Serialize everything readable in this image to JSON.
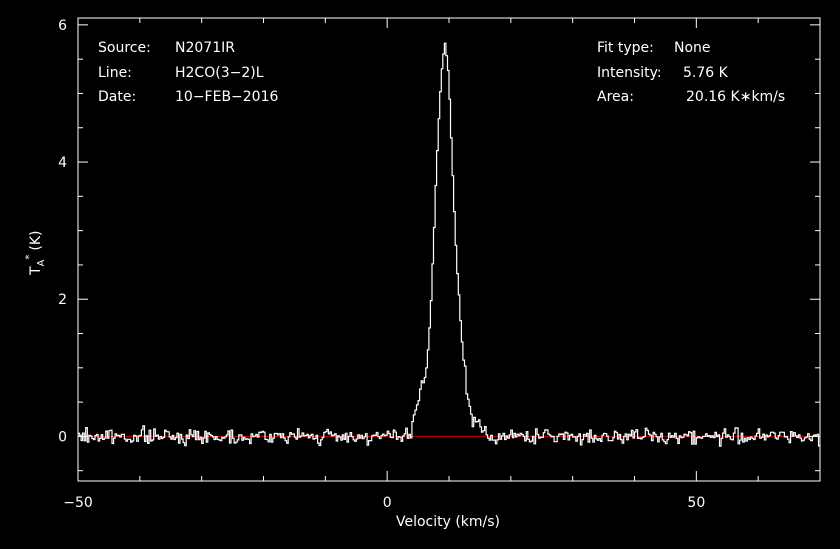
{
  "info": {
    "source_label": "Source:",
    "source_value": "N2071IR",
    "line_label": "Line:",
    "line_value": "H2CO(3−2)L",
    "date_label": "Date:",
    "date_value": "10−FEB−2016",
    "fit_label": "Fit type:",
    "fit_value": "None",
    "intensity_label": "Intensity:",
    "intensity_value": "5.76 K",
    "area_label": "Area:",
    "area_value": "20.16 K∗km/s"
  },
  "chart_data": {
    "type": "line",
    "xlabel": "Velocity (km/s)",
    "ylabel_main": "T",
    "ylabel_sub": "A",
    "ylabel_sup": "*",
    "ylabel_unit": "(K)",
    "xlim": [
      -50,
      70
    ],
    "ylim": [
      -0.65,
      6.1
    ],
    "x_ticks": [
      -50,
      0,
      50
    ],
    "x_tick_labels": [
      "−50",
      "0",
      "50"
    ],
    "y_ticks": [
      0,
      2,
      4,
      6
    ],
    "y_tick_labels": [
      "0",
      "2",
      "4",
      "6"
    ],
    "baseline_value": 0,
    "colors": {
      "spectrum": "#ffffff",
      "baseline": "#cc0000",
      "frame": "#ffffff",
      "background": "#000000"
    },
    "series": [
      {
        "x": [
          4.0,
          5.0,
          6.0,
          6.5,
          7.0,
          7.5,
          8.0,
          8.5,
          9.0,
          9.3,
          9.6,
          10.0,
          10.4,
          10.8,
          11.2,
          11.6,
          12.0,
          12.5,
          13.0,
          13.5,
          14.0,
          15.0,
          16.0
        ],
        "y": [
          0.25,
          0.45,
          0.8,
          1.1,
          1.7,
          2.8,
          3.9,
          4.9,
          5.5,
          5.76,
          5.6,
          5.2,
          4.3,
          3.4,
          2.6,
          2.1,
          1.5,
          1.0,
          0.6,
          0.35,
          0.22,
          0.15,
          0.05
        ]
      }
    ]
  }
}
